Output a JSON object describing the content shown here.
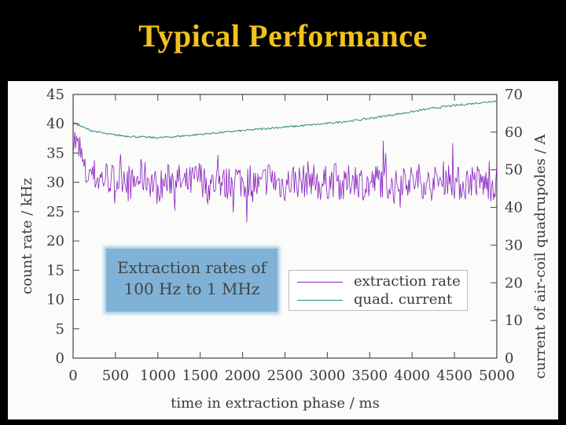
{
  "slide": {
    "title": "Typical Performance"
  },
  "colors": {
    "background": "#000000",
    "title": "#f2c21b",
    "extraction_rate": "#8a1fc2",
    "quad_current": "#2a8a78",
    "callout": "#7fb2d6"
  },
  "callout": {
    "line1": "Extraction rates of",
    "line2": "100 Hz to 1 MHz"
  },
  "chart_data": {
    "type": "line",
    "xlabel": "time in extraction phase / ms",
    "ylabel": "count rate / kHz",
    "y2label": "current of air-coil quadrupoles / A",
    "xlim": [
      0,
      5000
    ],
    "ylim": [
      0,
      45
    ],
    "y2lim": [
      0,
      70
    ],
    "xticks": [
      "0",
      "500",
      "1000",
      "1500",
      "2000",
      "2500",
      "3000",
      "3500",
      "4000",
      "4500",
      "5000"
    ],
    "yticks": [
      "0",
      "5",
      "10",
      "15",
      "20",
      "25",
      "30",
      "35",
      "40",
      "45"
    ],
    "y2ticks": [
      "0",
      "10",
      "20",
      "30",
      "40",
      "50",
      "60",
      "70"
    ],
    "legend_position": "center-right",
    "grid": false,
    "series": [
      {
        "name": "extraction rate",
        "axis": "left",
        "x": [
          0,
          50,
          100,
          150,
          200,
          300,
          400,
          500,
          600,
          700,
          800,
          900,
          1000,
          1100,
          1200,
          1300,
          1400,
          1500,
          1600,
          1700,
          1800,
          1900,
          2000,
          2100,
          2200,
          2300,
          2400,
          2500,
          2600,
          2700,
          2800,
          2900,
          3000,
          3100,
          3200,
          3300,
          3400,
          3500,
          3600,
          3700,
          3800,
          3900,
          4000,
          4100,
          4200,
          4300,
          4400,
          4500,
          4600,
          4700,
          4800,
          4900,
          5000
        ],
        "values": [
          38,
          36,
          34,
          31,
          32,
          30.5,
          31,
          30,
          31.5,
          29.5,
          31,
          30.5,
          29,
          30,
          31,
          29.5,
          30,
          31,
          29,
          30.5,
          29.5,
          31,
          30,
          30.5,
          29,
          31,
          30,
          29.5,
          30.5,
          30,
          31,
          29.5,
          30,
          30.5,
          29,
          31,
          30,
          29.5,
          30.5,
          30,
          29,
          31,
          30,
          30.5,
          29.5,
          30,
          31,
          30,
          29.5,
          30.5,
          30,
          29.5,
          30
        ],
        "noise": 3
      },
      {
        "name": "quad. current",
        "axis": "right",
        "x": [
          0,
          100,
          200,
          400,
          600,
          800,
          1000,
          1200,
          1400,
          1600,
          1800,
          2000,
          2200,
          2400,
          2600,
          2800,
          3000,
          3200,
          3400,
          3600,
          3800,
          4000,
          4200,
          4400,
          4600,
          4800,
          5000
        ],
        "values": [
          62.5,
          61.5,
          60.5,
          59.5,
          59,
          58.7,
          58.5,
          58.8,
          59.2,
          59.6,
          60,
          60.4,
          60.8,
          61.2,
          61.5,
          61.9,
          62.3,
          62.8,
          63.3,
          64,
          64.7,
          65.4,
          66.2,
          66.8,
          67.3,
          67.8,
          68.3
        ]
      }
    ]
  }
}
